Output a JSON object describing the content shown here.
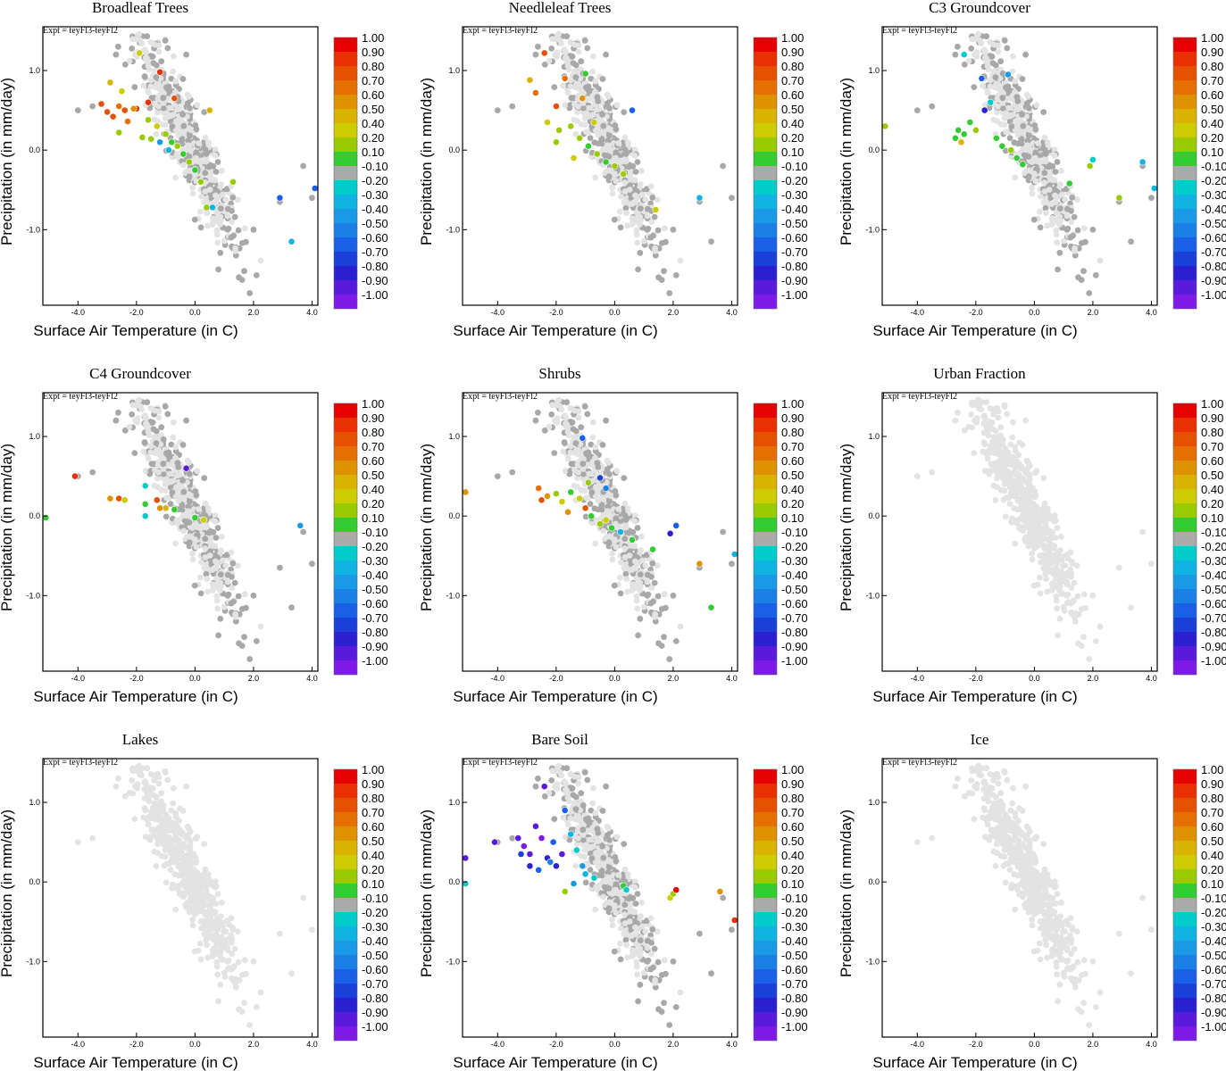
{
  "figure": {
    "expt_label": "Expt = teyFl3-teyFl2",
    "xlabel": "Surface Air Temperature (in C)",
    "ylabel": "Precipitation (in mm/day)"
  },
  "colorbar": {
    "labels": [
      "1.00",
      "0.90",
      "0.80",
      "0.70",
      "0.60",
      "0.50",
      "0.40",
      "0.20",
      "0.10",
      "-0.10",
      "-0.20",
      "-0.30",
      "-0.40",
      "-0.50",
      "-0.60",
      "-0.70",
      "-0.80",
      "-0.90",
      "-1.00"
    ],
    "colors": [
      "#e60000",
      "#e83000",
      "#e65100",
      "#e57000",
      "#df9200",
      "#d9b300",
      "#cccc00",
      "#99cc00",
      "#33cc33",
      "#aaaaaa",
      "#00cccc",
      "#11b3e3",
      "#1a99e6",
      "#1a80e6",
      "#1a60e6",
      "#1a40d9",
      "#2a20d0",
      "#5a1ad9",
      "#7f1ae6"
    ]
  },
  "chart_data": [
    {
      "type": "scatter",
      "title": "Broadleaf Trees",
      "xlabel": "Surface Air Temperature (in C)",
      "ylabel": "Precipitation (in mm/day)",
      "xlim": [
        -5.2,
        4.2
      ],
      "ylim": [
        -1.95,
        1.55
      ],
      "xticks": [
        -4.0,
        -2.0,
        0.0,
        2.0,
        4.0
      ],
      "xtick_labels": [
        "-4.0",
        "-2.0",
        "0.0",
        "2.0",
        "4.0"
      ],
      "yticks": [
        1.0,
        0.0,
        -1.0
      ],
      "ytick_labels": [
        "1.0",
        "0.0",
        "-1.0"
      ],
      "points": [
        {
          "x": -3.2,
          "y": 0.58,
          "c": 0.8
        },
        {
          "x": -3.0,
          "y": 0.48,
          "c": 0.8
        },
        {
          "x": -2.8,
          "y": 0.42,
          "c": 0.8
        },
        {
          "x": -2.6,
          "y": 0.55,
          "c": 0.7
        },
        {
          "x": -2.4,
          "y": 0.5,
          "c": 0.8
        },
        {
          "x": -2.3,
          "y": 0.36,
          "c": 0.7
        },
        {
          "x": -2.0,
          "y": 0.52,
          "c": 0.9
        },
        {
          "x": -1.6,
          "y": 0.6,
          "c": 0.9
        },
        {
          "x": -1.2,
          "y": 0.98,
          "c": 0.9
        },
        {
          "x": -0.7,
          "y": 0.65,
          "c": 0.8
        },
        {
          "x": -2.9,
          "y": 0.85,
          "c": 0.5
        },
        {
          "x": -2.5,
          "y": 0.74,
          "c": 0.4
        },
        {
          "x": -2.1,
          "y": 0.52,
          "c": 0.6
        },
        {
          "x": -1.8,
          "y": 0.16,
          "c": 0.3
        },
        {
          "x": -1.3,
          "y": 0.3,
          "c": 0.4
        },
        {
          "x": -1.5,
          "y": 0.14,
          "c": 0.3
        },
        {
          "x": -1.0,
          "y": 0.2,
          "c": 0.2
        },
        {
          "x": -0.8,
          "y": 0.1,
          "c": 0.1
        },
        {
          "x": -0.6,
          "y": 0.05,
          "c": 0.2
        },
        {
          "x": -0.4,
          "y": -0.05,
          "c": 0.1
        },
        {
          "x": -0.2,
          "y": -0.15,
          "c": 0.2
        },
        {
          "x": 0.0,
          "y": -0.25,
          "c": 0.1
        },
        {
          "x": 0.2,
          "y": -0.4,
          "c": 0.2
        },
        {
          "x": 0.5,
          "y": 0.5,
          "c": 0.5
        },
        {
          "x": -1.2,
          "y": 0.1,
          "c": -0.4
        },
        {
          "x": -0.9,
          "y": 0.0,
          "c": -0.3
        },
        {
          "x": 0.4,
          "y": -0.72,
          "c": 0.3
        },
        {
          "x": 0.6,
          "y": -0.72,
          "c": -0.3
        },
        {
          "x": 1.3,
          "y": -0.4,
          "c": 0.2
        },
        {
          "x": 2.9,
          "y": -0.6,
          "c": -0.6
        },
        {
          "x": 3.3,
          "y": -1.15,
          "c": -0.3
        },
        {
          "x": 4.1,
          "y": -0.48,
          "c": -0.6
        },
        {
          "x": -1.6,
          "y": 0.38,
          "c": 0.3
        },
        {
          "x": -1.9,
          "y": 1.22,
          "c": 0.4
        },
        {
          "x": -2.6,
          "y": 0.22,
          "c": 0.3
        }
      ]
    },
    {
      "type": "scatter",
      "title": "Needleleaf Trees",
      "xlabel": "Surface Air Temperature (in C)",
      "ylabel": "Precipitation (in mm/day)",
      "xlim": [
        -5.2,
        4.2
      ],
      "ylim": [
        -1.95,
        1.55
      ],
      "xticks": [
        -4.0,
        -2.0,
        0.0,
        2.0,
        4.0
      ],
      "xtick_labels": [
        "-4.0",
        "-2.0",
        "0.0",
        "2.0",
        "4.0"
      ],
      "yticks": [
        1.0,
        0.0,
        -1.0
      ],
      "ytick_labels": [
        "1.0",
        "0.0",
        "-1.0"
      ],
      "points": [
        {
          "x": -2.4,
          "y": 1.22,
          "c": 0.8
        },
        {
          "x": -2.7,
          "y": 0.72,
          "c": 0.7
        },
        {
          "x": -2.9,
          "y": 0.88,
          "c": 0.5
        },
        {
          "x": -2.0,
          "y": 0.55,
          "c": 0.8
        },
        {
          "x": -1.7,
          "y": 0.9,
          "c": 0.7
        },
        {
          "x": -1.1,
          "y": 0.65,
          "c": 0.6
        },
        {
          "x": -2.3,
          "y": 0.35,
          "c": 0.4
        },
        {
          "x": -1.9,
          "y": 0.25,
          "c": 0.3
        },
        {
          "x": -1.5,
          "y": 0.3,
          "c": 0.3
        },
        {
          "x": -1.2,
          "y": 0.15,
          "c": 0.2
        },
        {
          "x": -0.9,
          "y": 0.05,
          "c": 0.1
        },
        {
          "x": -0.6,
          "y": -0.05,
          "c": 0.2
        },
        {
          "x": -0.3,
          "y": -0.15,
          "c": 0.1
        },
        {
          "x": 0.0,
          "y": -0.2,
          "c": 0.2
        },
        {
          "x": 0.3,
          "y": -0.3,
          "c": 0.3
        },
        {
          "x": -1.0,
          "y": 0.96,
          "c": 0.1
        },
        {
          "x": 0.6,
          "y": 0.5,
          "c": -0.6
        },
        {
          "x": 1.4,
          "y": -0.75,
          "c": 0.4
        },
        {
          "x": 2.9,
          "y": -0.6,
          "c": -0.3
        },
        {
          "x": -2.0,
          "y": 0.1,
          "c": 0.2
        },
        {
          "x": -1.4,
          "y": -0.1,
          "c": 0.4
        },
        {
          "x": -0.7,
          "y": 0.35,
          "c": 0.4
        }
      ]
    },
    {
      "type": "scatter",
      "title": "C3 Groundcover",
      "xlabel": "Surface Air Temperature (in C)",
      "ylabel": "Precipitation (in mm/day)",
      "xlim": [
        -5.2,
        4.2
      ],
      "ylim": [
        -1.95,
        1.55
      ],
      "xticks": [
        -4.0,
        -2.0,
        0.0,
        2.0,
        4.0
      ],
      "xtick_labels": [
        "-4.0",
        "-2.0",
        "0.0",
        "2.0",
        "4.0"
      ],
      "yticks": [
        1.0,
        0.0,
        -1.0
      ],
      "ytick_labels": [
        "1.0",
        "0.0",
        "-1.0"
      ],
      "points": [
        {
          "x": -5.1,
          "y": 0.3,
          "c": 0.2
        },
        {
          "x": -2.6,
          "y": 0.25,
          "c": 0.1
        },
        {
          "x": -2.4,
          "y": 0.2,
          "c": 0.1
        },
        {
          "x": -2.2,
          "y": 0.35,
          "c": 0.1
        },
        {
          "x": -2.7,
          "y": 0.15,
          "c": 0.1
        },
        {
          "x": -2.5,
          "y": 0.1,
          "c": 0.5
        },
        {
          "x": -1.5,
          "y": 0.6,
          "c": -0.2
        },
        {
          "x": -1.7,
          "y": 0.5,
          "c": -0.8
        },
        {
          "x": -1.1,
          "y": 0.05,
          "c": 0.1
        },
        {
          "x": -0.8,
          "y": 0.0,
          "c": 0.2
        },
        {
          "x": -0.6,
          "y": -0.1,
          "c": 0.1
        },
        {
          "x": -0.9,
          "y": 0.95,
          "c": -0.4
        },
        {
          "x": -2.4,
          "y": 1.2,
          "c": -0.2
        },
        {
          "x": -1.8,
          "y": 0.9,
          "c": -0.6
        },
        {
          "x": -0.4,
          "y": -0.18,
          "c": 0.1
        },
        {
          "x": 1.2,
          "y": -0.42,
          "c": 0.1
        },
        {
          "x": 1.9,
          "y": -0.2,
          "c": 0.3
        },
        {
          "x": 2.0,
          "y": -0.12,
          "c": -0.2
        },
        {
          "x": 2.9,
          "y": -0.6,
          "c": 0.2
        },
        {
          "x": 3.7,
          "y": -0.15,
          "c": -0.3
        },
        {
          "x": 4.1,
          "y": -0.48,
          "c": -0.3
        },
        {
          "x": -2.0,
          "y": 0.25,
          "c": 0.2
        },
        {
          "x": -1.3,
          "y": 0.15,
          "c": 0.1
        }
      ]
    },
    {
      "type": "scatter",
      "title": "C4 Groundcover",
      "xlabel": "Surface Air Temperature (in C)",
      "ylabel": "Precipitation (in mm/day)",
      "xlim": [
        -5.2,
        4.2
      ],
      "ylim": [
        -1.95,
        1.55
      ],
      "xticks": [
        -4.0,
        -2.0,
        0.0,
        2.0,
        4.0
      ],
      "xtick_labels": [
        "-4.0",
        "-2.0",
        "0.0",
        "2.0",
        "4.0"
      ],
      "yticks": [
        1.0,
        0.0,
        -1.0
      ],
      "ytick_labels": [
        "1.0",
        "0.0",
        "-1.0"
      ],
      "points": [
        {
          "x": -5.1,
          "y": -0.02,
          "c": 0.1
        },
        {
          "x": -4.1,
          "y": 0.5,
          "c": 0.9
        },
        {
          "x": -2.9,
          "y": 0.22,
          "c": 0.6
        },
        {
          "x": -2.6,
          "y": 0.22,
          "c": 0.8
        },
        {
          "x": -2.4,
          "y": 0.2,
          "c": 0.4
        },
        {
          "x": -1.7,
          "y": 0.15,
          "c": 0.1
        },
        {
          "x": -1.3,
          "y": 0.2,
          "c": 0.8
        },
        {
          "x": -1.0,
          "y": 0.1,
          "c": 0.5
        },
        {
          "x": -0.7,
          "y": 0.08,
          "c": 0.1
        },
        {
          "x": -1.7,
          "y": 0.38,
          "c": -0.2
        },
        {
          "x": -1.7,
          "y": 0.0,
          "c": -0.2
        },
        {
          "x": -0.3,
          "y": 0.6,
          "c": -0.9
        },
        {
          "x": 0.0,
          "y": -0.02,
          "c": 0.1
        },
        {
          "x": 0.3,
          "y": -0.05,
          "c": 0.4
        },
        {
          "x": 3.6,
          "y": -0.12,
          "c": -0.4
        },
        {
          "x": -1.2,
          "y": 0.1,
          "c": 0.6
        }
      ]
    },
    {
      "type": "scatter",
      "title": "Shrubs",
      "xlabel": "Surface Air Temperature (in C)",
      "ylabel": "Precipitation (in mm/day)",
      "xlim": [
        -5.2,
        4.2
      ],
      "ylim": [
        -1.95,
        1.55
      ],
      "xticks": [
        -4.0,
        -2.0,
        0.0,
        2.0,
        4.0
      ],
      "xtick_labels": [
        "-4.0",
        "-2.0",
        "0.0",
        "2.0",
        "4.0"
      ],
      "yticks": [
        1.0,
        0.0,
        -1.0
      ],
      "ytick_labels": [
        "1.0",
        "0.0",
        "-1.0"
      ],
      "points": [
        {
          "x": -5.1,
          "y": 0.3,
          "c": 0.6
        },
        {
          "x": -2.6,
          "y": 0.35,
          "c": 0.7
        },
        {
          "x": -2.5,
          "y": 0.2,
          "c": 0.8
        },
        {
          "x": -2.3,
          "y": 0.25,
          "c": 0.6
        },
        {
          "x": -2.0,
          "y": 0.28,
          "c": 0.2
        },
        {
          "x": -1.8,
          "y": 0.18,
          "c": 0.4
        },
        {
          "x": -1.5,
          "y": 0.3,
          "c": 0.1
        },
        {
          "x": -1.2,
          "y": 0.22,
          "c": 0.4
        },
        {
          "x": -1.0,
          "y": 0.1,
          "c": 0.8
        },
        {
          "x": -0.8,
          "y": 0.0,
          "c": 0.1
        },
        {
          "x": -0.5,
          "y": -0.1,
          "c": 0.2
        },
        {
          "x": -0.3,
          "y": -0.05,
          "c": 0.4
        },
        {
          "x": -1.1,
          "y": 0.98,
          "c": -0.6
        },
        {
          "x": -0.5,
          "y": 0.48,
          "c": -0.7
        },
        {
          "x": -0.3,
          "y": 0.35,
          "c": -0.5
        },
        {
          "x": -0.9,
          "y": 0.42,
          "c": 0.3
        },
        {
          "x": 0.2,
          "y": -0.2,
          "c": -0.3
        },
        {
          "x": 0.6,
          "y": -0.3,
          "c": 0.1
        },
        {
          "x": 1.3,
          "y": -0.42,
          "c": 0.1
        },
        {
          "x": 1.9,
          "y": -0.22,
          "c": -0.8
        },
        {
          "x": 2.1,
          "y": -0.12,
          "c": -0.6
        },
        {
          "x": 2.9,
          "y": -0.6,
          "c": 0.6
        },
        {
          "x": 3.3,
          "y": -1.15,
          "c": 0.1
        },
        {
          "x": 4.1,
          "y": -0.48,
          "c": -0.3
        },
        {
          "x": -1.6,
          "y": 0.05,
          "c": 0.6
        },
        {
          "x": -0.1,
          "y": -0.15,
          "c": 0.1
        }
      ]
    },
    {
      "type": "scatter",
      "title": "Urban Fraction",
      "xlabel": "Surface Air Temperature (in C)",
      "ylabel": "Precipitation (in mm/day)",
      "xlim": [
        -5.2,
        4.2
      ],
      "ylim": [
        -1.95,
        1.55
      ],
      "xticks": [
        -4.0,
        -2.0,
        0.0,
        2.0,
        4.0
      ],
      "xtick_labels": [
        "-4.0",
        "-2.0",
        "0.0",
        "2.0",
        "4.0"
      ],
      "yticks": [
        1.0,
        0.0,
        -1.0
      ],
      "ytick_labels": [
        "1.0",
        "0.0",
        "-1.0"
      ],
      "points": []
    },
    {
      "type": "scatter",
      "title": "Lakes",
      "xlabel": "Surface Air Temperature (in C)",
      "ylabel": "Precipitation (in mm/day)",
      "xlim": [
        -5.2,
        4.2
      ],
      "ylim": [
        -1.95,
        1.55
      ],
      "xticks": [
        -4.0,
        -2.0,
        0.0,
        2.0,
        4.0
      ],
      "xtick_labels": [
        "-4.0",
        "-2.0",
        "0.0",
        "2.0",
        "4.0"
      ],
      "yticks": [
        1.0,
        0.0,
        -1.0
      ],
      "ytick_labels": [
        "1.0",
        "0.0",
        "-1.0"
      ],
      "points": []
    },
    {
      "type": "scatter",
      "title": "Bare Soil",
      "xlabel": "Surface Air Temperature (in C)",
      "ylabel": "Precipitation (in mm/day)",
      "xlim": [
        -5.2,
        4.2
      ],
      "ylim": [
        -1.95,
        1.55
      ],
      "xticks": [
        -4.0,
        -2.0,
        0.0,
        2.0,
        4.0
      ],
      "xtick_labels": [
        "-4.0",
        "-2.0",
        "0.0",
        "2.0",
        "4.0"
      ],
      "yticks": [
        1.0,
        0.0,
        -1.0
      ],
      "ytick_labels": [
        "1.0",
        "0.0",
        "-1.0"
      ],
      "points": [
        {
          "x": -5.1,
          "y": 0.3,
          "c": -0.9
        },
        {
          "x": -5.1,
          "y": -0.02,
          "c": -0.2
        },
        {
          "x": -4.1,
          "y": 0.5,
          "c": -0.9
        },
        {
          "x": -3.3,
          "y": 0.55,
          "c": -0.9
        },
        {
          "x": -3.1,
          "y": 0.45,
          "c": -1.0
        },
        {
          "x": -2.9,
          "y": 0.35,
          "c": -0.9
        },
        {
          "x": -2.7,
          "y": 0.7,
          "c": -0.9
        },
        {
          "x": -2.5,
          "y": 0.55,
          "c": -1.0
        },
        {
          "x": -2.4,
          "y": 1.2,
          "c": -0.9
        },
        {
          "x": -2.3,
          "y": 0.3,
          "c": -0.8
        },
        {
          "x": -2.1,
          "y": 0.5,
          "c": -0.6
        },
        {
          "x": -2.0,
          "y": 0.2,
          "c": -0.8
        },
        {
          "x": -1.8,
          "y": 0.35,
          "c": -0.9
        },
        {
          "x": -2.9,
          "y": 0.2,
          "c": -0.8
        },
        {
          "x": -2.6,
          "y": 0.15,
          "c": -0.6
        },
        {
          "x": -1.7,
          "y": 0.9,
          "c": -0.6
        },
        {
          "x": -1.5,
          "y": 0.6,
          "c": -0.3
        },
        {
          "x": -1.3,
          "y": 0.4,
          "c": -0.2
        },
        {
          "x": -1.1,
          "y": 0.2,
          "c": -0.4
        },
        {
          "x": -1.0,
          "y": 0.1,
          "c": -0.3
        },
        {
          "x": -0.7,
          "y": 0.05,
          "c": -0.2
        },
        {
          "x": -1.7,
          "y": -0.12,
          "c": 0.2
        },
        {
          "x": -3.2,
          "y": 0.35,
          "c": -0.7
        },
        {
          "x": 0.3,
          "y": -0.05,
          "c": 0.1
        },
        {
          "x": 0.4,
          "y": -0.1,
          "c": -0.2
        },
        {
          "x": 1.9,
          "y": -0.2,
          "c": 0.4
        },
        {
          "x": 2.0,
          "y": -0.15,
          "c": 0.2
        },
        {
          "x": 2.1,
          "y": -0.1,
          "c": 1.0
        },
        {
          "x": 3.6,
          "y": -0.12,
          "c": 0.6
        },
        {
          "x": 4.1,
          "y": -0.48,
          "c": 0.9
        },
        {
          "x": -2.2,
          "y": 0.25,
          "c": -0.5
        },
        {
          "x": -1.4,
          "y": -0.02,
          "c": -0.4
        }
      ]
    },
    {
      "type": "scatter",
      "title": "Ice",
      "xlabel": "Surface Air Temperature (in C)",
      "ylabel": "Precipitation (in mm/day)",
      "xlim": [
        -5.2,
        4.2
      ],
      "ylim": [
        -1.95,
        1.55
      ],
      "xticks": [
        -4.0,
        -2.0,
        0.0,
        2.0,
        4.0
      ],
      "xtick_labels": [
        "-4.0",
        "-2.0",
        "0.0",
        "2.0",
        "4.0"
      ],
      "yticks": [
        1.0,
        0.0,
        -1.0
      ],
      "ytick_labels": [
        "1.0",
        "0.0",
        "-1.0"
      ],
      "points": []
    }
  ]
}
